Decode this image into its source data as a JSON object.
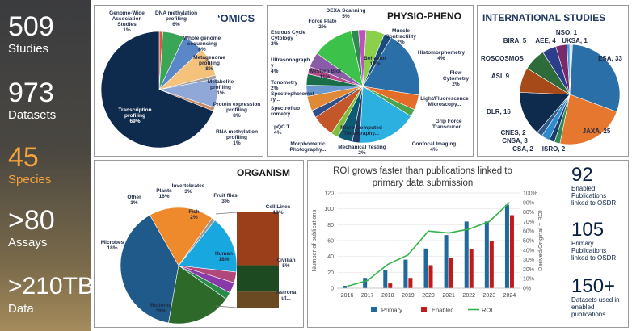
{
  "sidebar": {
    "stats": [
      {
        "num": "509",
        "label": "Studies"
      },
      {
        "num": "973",
        "label": "Datasets"
      },
      {
        "num": "45",
        "label": "Species"
      },
      {
        "num": ">80",
        "label": "Assays"
      },
      {
        "num": ">210TB",
        "label": "Data"
      }
    ]
  },
  "omics": {
    "title": "‘OMICS",
    "labels": {
      "gwas": "Genome-Wide Association Studies\n1%",
      "dnam": "DNA methylation profiling\n6%",
      "wgs": "Whole genome sequencing\n6%",
      "meta": "Metagenome profiling\n8%",
      "metab": "Metabolite profiling\n1%",
      "prot": "Protein expression profiling\n8%",
      "rnam": "RNA methylation profiling\n1%",
      "trans": "Transcription profiling\n69%"
    }
  },
  "physio": {
    "title": "PHYSIO-PHENO",
    "labels": {
      "dexa": "DEXA Scanning\n5%",
      "force": "Force Plate\n2%",
      "estrous": "Estrous Cycle Cytology\n2%",
      "ultra": "Ultrasonograph y\n4%",
      "tono": "Tonometry\n2%",
      "spphot": "Spectrophotomet ry...",
      "spfluo": "Spectrofluo rometry...",
      "pqct": "pQC T\n4%",
      "morph": "Morphometric Photography...",
      "wb": "Western Blot\n11%",
      "behav": "Behavior\n18%",
      "muscle": "Muscle Contractility\n2%",
      "histo": "Histomorphometry\n4%",
      "flow": "Flow Cytometry\n2%",
      "lfm": "Light/Fluorescence Microscopy...",
      "grip": "Grip Force Transducer...",
      "confocal": "Confocal Imaging\n4%",
      "mech": "Mechanical Testing\n2%",
      "pct": "Micro-Computed Tomography..."
    }
  },
  "intl": {
    "title": "INTERNATIONAL STUDIES",
    "labels": {
      "nso": "NSO, 1",
      "bira": "BIRA, 5",
      "aee": "AEE, 4",
      "uksa": "UKSA, 1",
      "esa": "ESA, 33",
      "roscosmos": "ROSCOSMOS",
      "asi": "ASI, 9",
      "dlr": "DLR, 16",
      "cnes": "CNES, 2",
      "cnsa": "CNSA, 3",
      "csa": "CSA, 2",
      "isro": "ISRO, 2",
      "jaxa": "JAXA, 25"
    }
  },
  "organism": {
    "title": "ORGANISM",
    "labels": {
      "other": "Other\n1%",
      "plants": "Plants\n16%",
      "invert": "Invertebrates\n3%",
      "flies": "Fruit flies\n3%",
      "fish": "Fish\n2%",
      "microbes": "Microbes\n18%",
      "human": "Human\n18%",
      "rodents": "Rodents\n39%",
      "cell": "Cell Lines\n10%",
      "civilian": "Civilian\n5%",
      "astronaut": "Astrona ut..."
    }
  },
  "roi": {
    "title": "ROI grows faster than publications linked to primary data submission",
    "ylabel_left": "Number of publications",
    "ylabel_right": "Derived/Original = ROI",
    "legend": [
      "Primary",
      "Enabled",
      "ROI"
    ]
  },
  "callouts": [
    {
      "num": "92",
      "text": "Enabled Publications linked to OSDR"
    },
    {
      "num": "105",
      "text": "Primary Publications linked to OSDR"
    },
    {
      "num": "150+",
      "text": "Datasets used in enabled publications"
    }
  ],
  "chart_data": [
    {
      "type": "pie",
      "title": "‘OMICS",
      "categories": [
        "Genome-Wide Association Studies",
        "DNA methylation profiling",
        "Whole genome sequencing",
        "Metagenome profiling",
        "Metabolite profiling",
        "Protein expression profiling",
        "RNA methylation profiling",
        "Transcription profiling"
      ],
      "values": [
        1,
        6,
        6,
        8,
        1,
        8,
        1,
        69
      ],
      "colors": [
        "#e0553f",
        "#3aa655",
        "#5b86c8",
        "#f4c27a",
        "#a0a0a0",
        "#8fa8d8",
        "#c98a5f",
        "#0e2a4c"
      ]
    },
    {
      "type": "pie",
      "title": "PHYSIO-PHENO",
      "categories": [
        "Behavior",
        "Histomorphometry",
        "Flow Cytometry",
        "Light/Fluorescence Microscopy",
        "Grip Force Transducer",
        "Confocal Imaging",
        "Mechanical Testing",
        "Micro-Computed Tomography",
        "Morphometric Photography",
        "pQCT",
        "Spectrofluorometry",
        "Spectrophotometry",
        "Tonometry",
        "Ultrasonography",
        "Western Blot",
        "Estrous Cycle Cytology",
        "Force Plate",
        "DEXA Scanning",
        "Muscle Contractility"
      ],
      "values": [
        18,
        4,
        2,
        16,
        2,
        4,
        2,
        6,
        2,
        4,
        3,
        3,
        2,
        4,
        11,
        2,
        2,
        5,
        2
      ],
      "colors": [
        "#2a6fa8",
        "#e56d2a",
        "#4ea44a",
        "#2bb0e0",
        "#1f3f6a",
        "#0f5a73",
        "#7fbf3f",
        "#c4572a",
        "#2f4f8a",
        "#e08a38",
        "#6a9ad0",
        "#1b6e4a",
        "#b44a8a",
        "#8a5ca8",
        "#3cc14a",
        "#2f8a4f",
        "#c04fc0",
        "#8ad04a",
        "#1a4a7a"
      ]
    },
    {
      "type": "pie",
      "title": "INTERNATIONAL STUDIES",
      "categories": [
        "UKSA",
        "ESA",
        "JAXA",
        "ISRO",
        "CSA",
        "CNSA",
        "CNES",
        "DLR",
        "ASI",
        "ROSCOSMOS",
        "BIRA",
        "AEE",
        "NSO"
      ],
      "values": [
        1,
        33,
        25,
        2,
        2,
        3,
        2,
        16,
        9,
        8,
        5,
        4,
        1
      ],
      "colors": [
        "#d9d9d9",
        "#2a6fa8",
        "#e5772e",
        "#2e8b57",
        "#1b3f6a",
        "#2f8ad0",
        "#2e5a8a",
        "#0e2a4c",
        "#a64a1a",
        "#2d6b3a",
        "#2d3f8a",
        "#7a2a6a",
        "#3aa0e0"
      ]
    },
    {
      "type": "pie",
      "title": "ORGANISM",
      "categories": [
        "Rodents",
        "Microbes",
        "Other",
        "Plants",
        "Invertebrates",
        "Fruit flies",
        "Fish",
        "Human"
      ],
      "values": [
        39,
        18,
        1,
        16,
        3,
        3,
        2,
        18
      ],
      "colors": [
        "#1f5a8a",
        "#ef8a2c",
        "#9a9a9a",
        "#19a7e0",
        "#b0487a",
        "#8a3aa8",
        "#2a8a4a",
        "#2d6a2a"
      ]
    },
    {
      "type": "bar",
      "title": "Human",
      "categories": [
        "Cell Lines",
        "Civilian",
        "Astronaut"
      ],
      "values": [
        10,
        5,
        3
      ],
      "colors": [
        "#9a3f1a",
        "#1e4a22",
        "#6a4a22"
      ]
    },
    {
      "type": "bar",
      "title": "ROI grows faster than publications linked to primary data submission",
      "categories": [
        "2016",
        "2017",
        "2018",
        "2019",
        "2020",
        "2021",
        "2022",
        "2023",
        "2024"
      ],
      "series": [
        {
          "name": "Primary",
          "values": [
            3,
            13,
            23,
            36,
            50,
            67,
            84,
            84,
            105
          ],
          "color": "#1f6a9a"
        },
        {
          "name": "Enabled",
          "values": [
            0,
            0,
            6,
            13,
            29,
            38,
            49,
            60,
            92
          ],
          "color": "#c01a1a"
        },
        {
          "name": "ROI",
          "values": [
            2,
            8,
            25,
            35,
            60,
            58,
            62,
            70,
            90
          ],
          "color": "#34b24a",
          "axis": "right"
        }
      ],
      "ylim": [
        0,
        120
      ],
      "y2lim": [
        0,
        100
      ],
      "yticks": [
        0,
        20,
        40,
        60,
        80,
        100,
        120
      ],
      "y2ticks": [
        0,
        10,
        20,
        30,
        40,
        50,
        60,
        70,
        80,
        90,
        100
      ],
      "xlabel": "",
      "ylabel": "Number of publications",
      "y2label": "Derived/Original = ROI"
    }
  ]
}
